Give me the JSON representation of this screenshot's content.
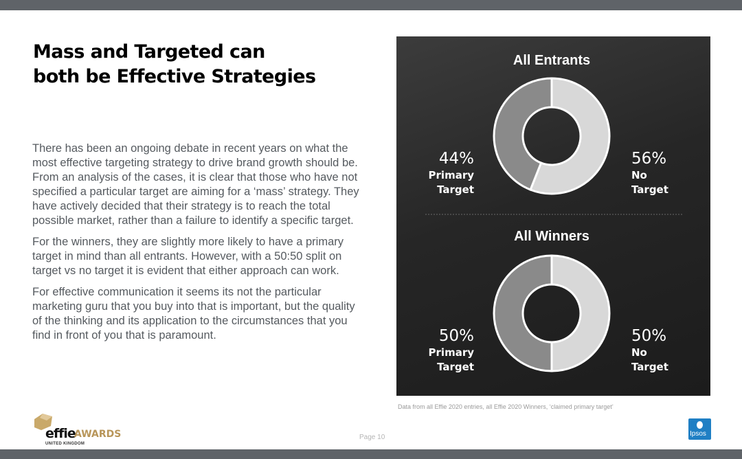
{
  "title_line1": "Mass and Targeted can",
  "title_line2": "both be Effective Strategies",
  "paragraphs": [
    "There has been an ongoing debate in recent years on what the most effective targeting strategy to drive brand growth should be.  From an analysis of the cases, it is clear that those who have not specified a particular target are aiming for a ‘mass’ strategy. They have actively decided that their strategy is to reach the total possible market, rather than a failure to identify a specific target.",
    "For the winners, they are slightly more likely to have a primary target in mind than all entrants. However, with a 50:50 split on target vs no target it is evident that either approach can work.",
    "For effective communication it seems its not the particular marketing guru that you buy into that is important, but the quality of the thinking and its application to the circumstances that you find in front of you that is paramount."
  ],
  "source_note": "Data from all Effie 2020 entries, all Effie 2020 Winners, ‘claimed primary target’",
  "page_number": "Page 10",
  "logo": {
    "effie": "effie",
    "awards": "AWARDS",
    "region": "UNITED KINGDOM"
  },
  "ipsos_logo_text": "Ipsos",
  "colors": {
    "panel_bg": "#262626",
    "primary_slice": "#8a8a8a",
    "no_target_slice": "#d8d8d8",
    "accent_gold": "#b8965a",
    "ipsos_blue": "#1f7fc4"
  },
  "chart_data": [
    {
      "type": "pie",
      "variant": "donut",
      "title": "All Entrants",
      "slices": [
        {
          "label_line1": "Primary",
          "label_line2": "Target",
          "value": 44,
          "value_label": "44%"
        },
        {
          "label_line1": "No",
          "label_line2": "Target",
          "value": 56,
          "value_label": "56%"
        }
      ]
    },
    {
      "type": "pie",
      "variant": "donut",
      "title": "All Winners",
      "slices": [
        {
          "label_line1": "Primary",
          "label_line2": "Target",
          "value": 50,
          "value_label": "50%"
        },
        {
          "label_line1": "No",
          "label_line2": "Target",
          "value": 50,
          "value_label": "50%"
        }
      ]
    }
  ]
}
